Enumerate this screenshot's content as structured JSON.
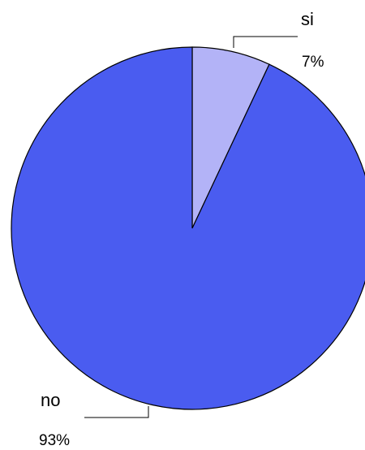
{
  "chart_data": {
    "type": "pie",
    "title": "",
    "slices": [
      {
        "label": "si",
        "value": 7,
        "value_label": "7%",
        "color": "#b3b3f7"
      },
      {
        "label": "no",
        "value": 93,
        "value_label": "93%",
        "color": "#4a5cf0"
      }
    ],
    "start_angle": "12 o'clock",
    "direction": "clockwise",
    "legend": "none",
    "outline_color": "#000000"
  }
}
